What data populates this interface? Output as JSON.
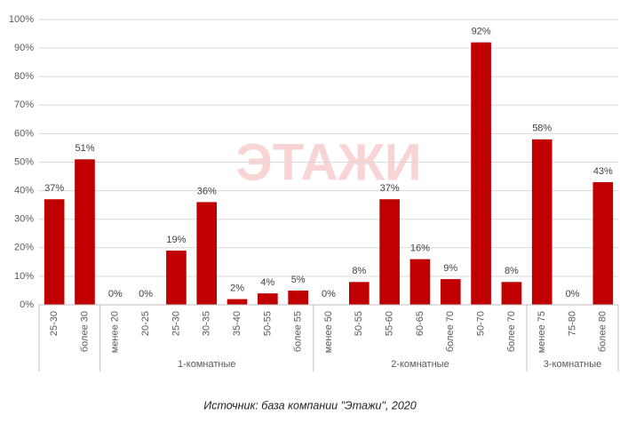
{
  "chart_data": {
    "type": "bar",
    "categories": [
      "25-30",
      "более 30",
      "менее 20",
      "20-25",
      "25-30",
      "30-35",
      "35-40",
      "50-55",
      "более 55",
      "менее 50",
      "50-55",
      "55-60",
      "60-65",
      "более 70",
      "50-70",
      "более 70",
      "менее 75",
      "75-80",
      "более 80"
    ],
    "group_labels": [
      null,
      "1-комнатные",
      "2-комнатные",
      "3-комнатные"
    ],
    "group_sizes": [
      2,
      7,
      7,
      3
    ],
    "values": [
      37,
      51,
      0,
      0,
      19,
      36,
      2,
      4,
      5,
      0,
      8,
      37,
      16,
      9,
      92,
      8,
      58,
      0,
      43
    ],
    "value_labels": [
      "37%",
      "51%",
      "0%",
      "0%",
      "19%",
      "36%",
      "2%",
      "4%",
      "5%",
      "0%",
      "8%",
      "37%",
      "16%",
      "9%",
      "92%",
      "8%",
      "58%",
      "0%",
      "43%"
    ],
    "color": "#c00000",
    "ylim": [
      0,
      100
    ],
    "yticks": [
      {
        "value": 0,
        "label": "0%"
      },
      {
        "value": 10,
        "label": "10%"
      },
      {
        "value": 20,
        "label": "20%"
      },
      {
        "value": 30,
        "label": "30%"
      },
      {
        "value": 40,
        "label": "40%"
      },
      {
        "value": 50,
        "label": "50%"
      },
      {
        "value": 60,
        "label": "60%"
      },
      {
        "value": 70,
        "label": "70%"
      },
      {
        "value": 80,
        "label": "80%"
      },
      {
        "value": 90,
        "label": "90%"
      },
      {
        "value": 100,
        "label": "100%"
      }
    ],
    "grid": true,
    "watermark": "ЭТАЖИ",
    "source": "Источник: база компании \"Этажи\", 2020"
  }
}
